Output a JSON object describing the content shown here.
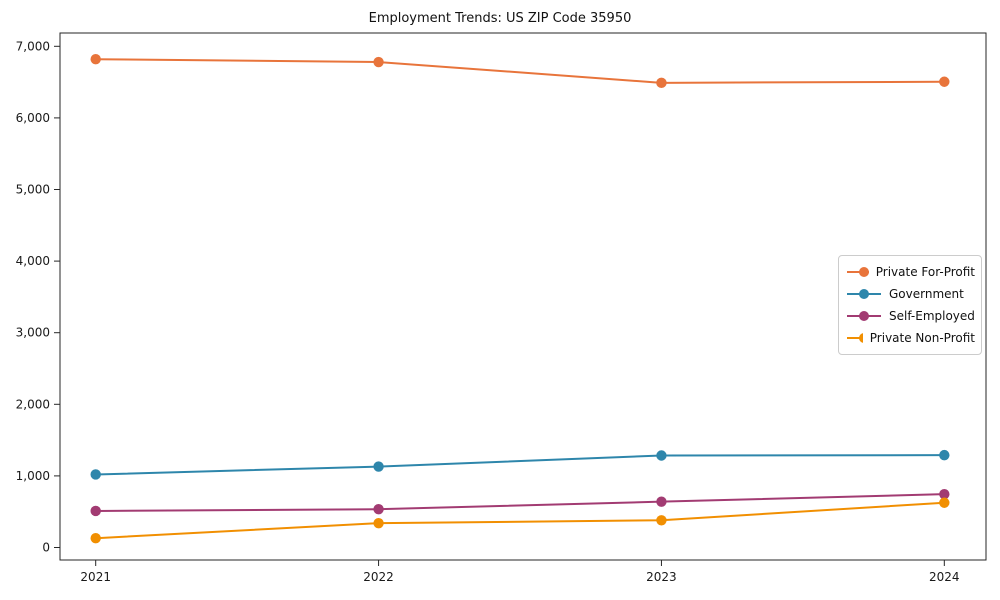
{
  "chart_data": {
    "type": "line",
    "title": "Employment Trends: US ZIP Code 35950",
    "categories": [
      "2021",
      "2022",
      "2023",
      "2024"
    ],
    "series": [
      {
        "name": "Private For-Profit",
        "color": "#E8743B",
        "values": [
          6820,
          6780,
          6490,
          6505
        ]
      },
      {
        "name": "Government",
        "color": "#2E86AB",
        "values": [
          1020,
          1130,
          1285,
          1290
        ]
      },
      {
        "name": "Self-Employed",
        "color": "#A23B72",
        "values": [
          510,
          535,
          640,
          745
        ]
      },
      {
        "name": "Private Non-Profit",
        "color": "#F18F01",
        "values": [
          130,
          340,
          380,
          625
        ]
      }
    ],
    "xlabel": "",
    "ylabel": "",
    "ylim": [
      0,
      7000
    ],
    "yticks": [
      0,
      1000,
      2000,
      3000,
      4000,
      5000,
      6000,
      7000
    ],
    "ytick_labels": [
      "0",
      "1,000",
      "2,000",
      "3,000",
      "4,000",
      "5,000",
      "6,000",
      "7,000"
    ],
    "grid": false,
    "legend_position": "middle-right",
    "marker": "circle",
    "axis_color": "#262626"
  }
}
